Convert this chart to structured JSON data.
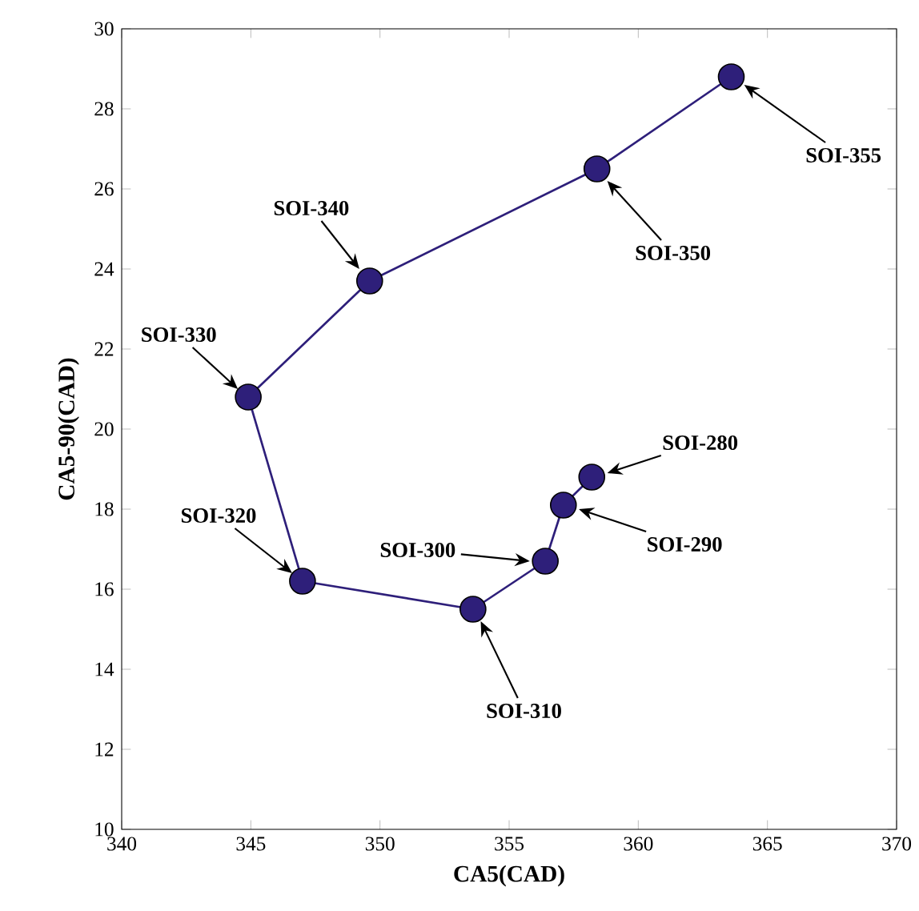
{
  "chart_data": {
    "type": "line",
    "xlabel": "CA5(CAD)",
    "ylabel": "CA5-90(CAD)",
    "x": [
      358.2,
      357.1,
      356.4,
      353.6,
      347.0,
      344.9,
      349.6,
      358.4,
      363.6
    ],
    "series": [
      {
        "color": "#2e1f7a",
        "values": [
          18.8,
          18.1,
          16.7,
          15.5,
          16.2,
          20.8,
          23.7,
          26.5,
          28.8
        ]
      }
    ],
    "marker": "circle",
    "line_style": "solid",
    "grid": false,
    "xlim": [
      340,
      370
    ],
    "ylim": [
      10,
      30
    ],
    "xticks": [
      340,
      345,
      350,
      355,
      360,
      365,
      370
    ],
    "yticks": [
      10,
      12,
      14,
      16,
      18,
      20,
      22,
      24,
      26,
      28,
      30
    ],
    "annotations": [
      {
        "text": "SOI-280",
        "x": 358.8,
        "y": 18.9
      },
      {
        "text": "SOI-290",
        "x": 357.7,
        "y": 18.0
      },
      {
        "text": "SOI-300",
        "x": 355.8,
        "y": 16.7
      },
      {
        "text": "SOI-310",
        "x": 353.9,
        "y": 15.2
      },
      {
        "text": "SOI-320",
        "x": 346.6,
        "y": 16.4
      },
      {
        "text": "SOI-330",
        "x": 344.5,
        "y": 21.0
      },
      {
        "text": "SOI-340",
        "x": 349.2,
        "y": 24.0
      },
      {
        "text": "SOI-350",
        "x": 358.8,
        "y": 26.2
      },
      {
        "text": "SOI-355",
        "x": 364.1,
        "y": 28.6
      }
    ]
  }
}
